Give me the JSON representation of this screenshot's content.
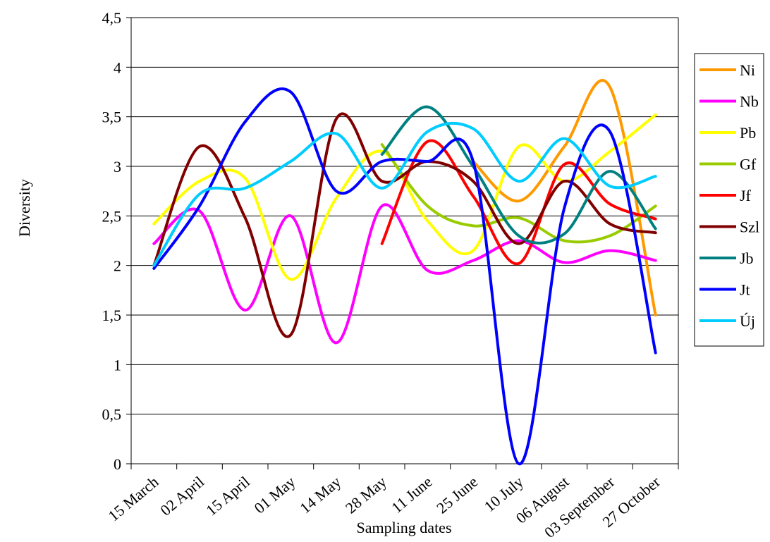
{
  "chart_data": {
    "type": "line",
    "smoothed": true,
    "title": "",
    "xlabel": "Sampling dates",
    "ylabel": "Diversity",
    "ylim": [
      0,
      4.5
    ],
    "yticks": [
      0,
      0.5,
      1,
      1.5,
      2,
      2.5,
      3,
      3.5,
      4,
      4.5
    ],
    "ytick_labels": [
      "0",
      "0,5",
      "1",
      "1,5",
      "2",
      "2,5",
      "3",
      "3,5",
      "4",
      "4,5"
    ],
    "xtick_labels": [
      "15 March",
      "02 April",
      "15 April",
      "01 May",
      "14 May",
      "28 May",
      "11 June",
      "25 June",
      "10 July",
      "06 August",
      "03 September",
      "27 October"
    ],
    "grid": "horizontal",
    "legend_position": "right",
    "series": [
      {
        "name": "Ni",
        "color": "#ff9900",
        "values": [
          null,
          null,
          null,
          null,
          null,
          null,
          null,
          3.05,
          2.65,
          3.2,
          3.8,
          1.5
        ]
      },
      {
        "name": "Nb",
        "color": "#ff00ff",
        "values": [
          2.22,
          2.55,
          1.55,
          2.5,
          1.22,
          2.6,
          1.95,
          2.05,
          2.25,
          2.03,
          2.15,
          2.05
        ]
      },
      {
        "name": "Pb",
        "color": "#ffff00",
        "values": [
          2.42,
          2.85,
          2.88,
          1.86,
          2.68,
          3.15,
          2.45,
          2.15,
          3.2,
          2.85,
          3.15,
          3.52
        ]
      },
      {
        "name": "Gf",
        "color": "#99cc00",
        "values": [
          null,
          null,
          null,
          null,
          null,
          3.22,
          2.6,
          2.4,
          2.48,
          2.25,
          2.3,
          2.6
        ]
      },
      {
        "name": "Jf",
        "color": "#ff0000",
        "values": [
          null,
          null,
          null,
          null,
          null,
          2.22,
          3.25,
          2.7,
          2.02,
          3.02,
          2.62,
          2.47
        ]
      },
      {
        "name": "Szl",
        "color": "#800000",
        "values": [
          2.0,
          3.2,
          2.48,
          1.3,
          3.48,
          2.85,
          3.05,
          2.85,
          2.22,
          2.85,
          2.42,
          2.33
        ]
      },
      {
        "name": "Jb",
        "color": "#008080",
        "values": [
          null,
          null,
          null,
          null,
          null,
          3.12,
          3.6,
          3.0,
          2.3,
          2.32,
          2.95,
          2.37
        ]
      },
      {
        "name": "Jt",
        "color": "#0000ff",
        "values": [
          1.97,
          2.6,
          3.45,
          3.75,
          2.75,
          3.05,
          3.05,
          3.05,
          0.0,
          2.58,
          3.35,
          1.12
        ]
      },
      {
        "name": "Új",
        "color": "#00ccff",
        "values": [
          2.0,
          2.72,
          2.78,
          3.05,
          3.33,
          2.78,
          3.35,
          3.38,
          2.85,
          3.28,
          2.8,
          2.9
        ]
      }
    ]
  }
}
